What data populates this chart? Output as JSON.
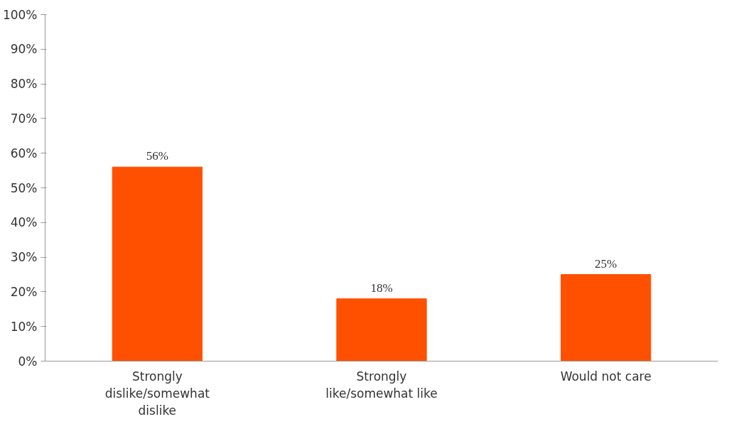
{
  "chart_data": {
    "type": "bar",
    "categories": [
      "Strongly dislike/somewhat dislike",
      "Strongly like/somewhat like",
      "Would not care"
    ],
    "values": [
      56,
      18,
      25
    ],
    "value_labels": [
      "56%",
      "18%",
      "25%"
    ],
    "color": "#ff5000",
    "ylim": [
      0,
      100
    ],
    "yticks": [
      {
        "value": 0,
        "label": "0%"
      },
      {
        "value": 10,
        "label": "10%"
      },
      {
        "value": 20,
        "label": "20%"
      },
      {
        "value": 30,
        "label": "30%"
      },
      {
        "value": 40,
        "label": "40%"
      },
      {
        "value": 50,
        "label": "50%"
      },
      {
        "value": 60,
        "label": "60%"
      },
      {
        "value": 70,
        "label": "70%"
      },
      {
        "value": 80,
        "label": "80%"
      },
      {
        "value": 90,
        "label": "90%"
      },
      {
        "value": 100,
        "label": "100%"
      }
    ],
    "grid": false
  }
}
